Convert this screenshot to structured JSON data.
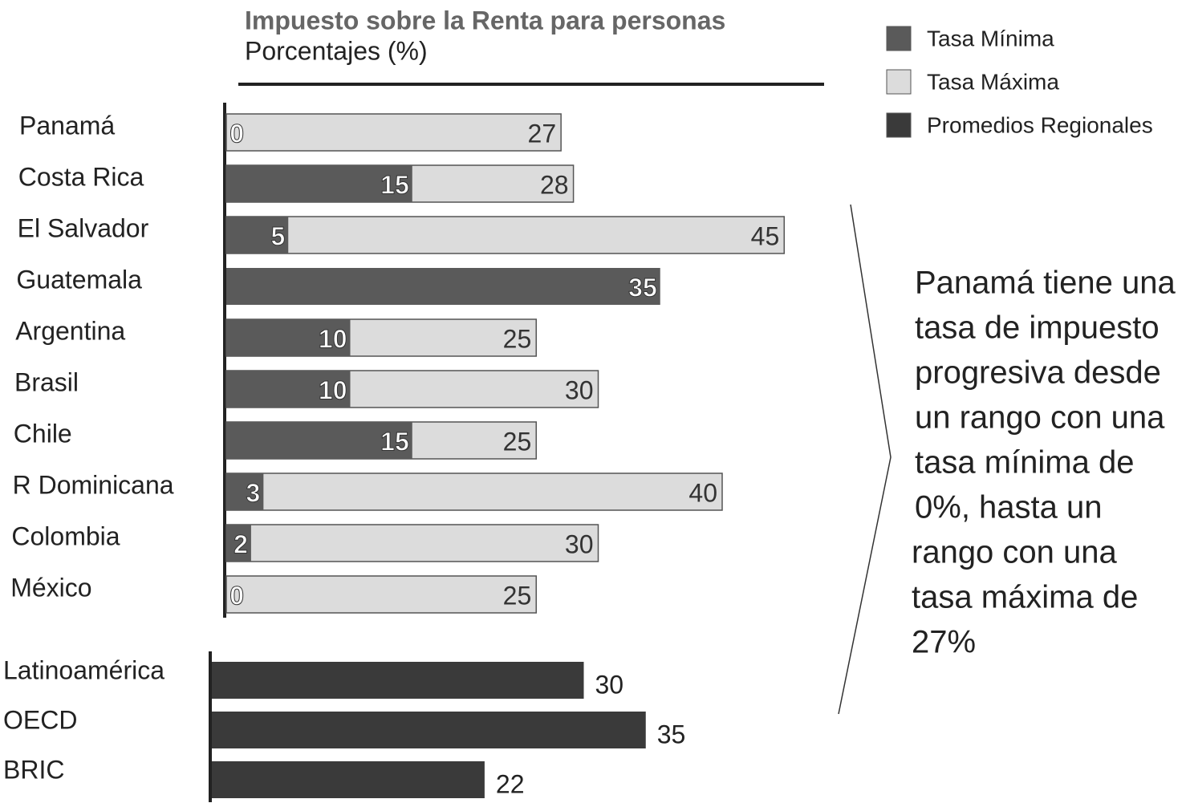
{
  "chart_data": [
    {
      "type": "bar",
      "title": "Impuesto sobre la Renta para personas",
      "subtitle": "Porcentajes (%)",
      "categories": [
        "Panamá",
        "Costa Rica",
        "El Salvador",
        "Guatemala",
        "Argentina",
        "Brasil",
        "Chile",
        "R Dominicana",
        "Colombia",
        "México"
      ],
      "series": [
        {
          "name": "Tasa Mínima",
          "color": "#5a5a5a",
          "values": [
            0,
            15,
            5,
            35,
            10,
            10,
            15,
            3,
            2,
            0
          ]
        },
        {
          "name": "Tasa Máxima",
          "color": "#dcdcdc",
          "values": [
            27,
            28,
            45,
            null,
            25,
            30,
            25,
            40,
            30,
            25
          ]
        }
      ],
      "annotation": [
        "Panamá tiene una",
        "tasa de impuesto",
        "progresiva desde",
        "un rango con una",
        "tasa mínima de",
        "0%, hasta un",
        "rango con una",
        "tasa máxima de",
        "27%"
      ]
    },
    {
      "type": "bar",
      "categories": [
        "Latinoamérica",
        "OECD",
        "BRIC"
      ],
      "series": [
        {
          "name": "Promedios Regionales",
          "color": "#3a3a3a",
          "values": [
            30,
            35,
            22
          ]
        }
      ]
    }
  ]
}
